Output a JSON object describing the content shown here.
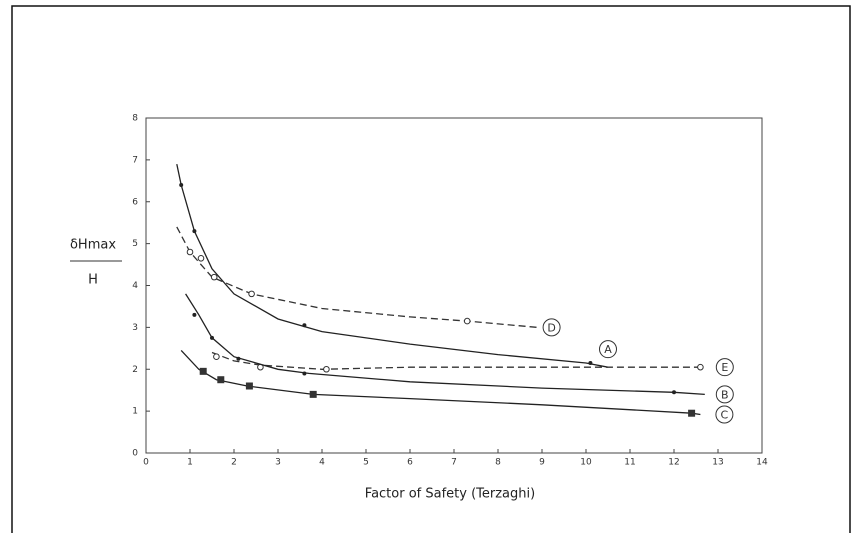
{
  "chart_data": {
    "type": "line",
    "x_label": "Factor of Safety (Terzaghi)",
    "y_label": {
      "numerator": "δHmax",
      "denominator": "H"
    },
    "xlim": [
      0,
      14
    ],
    "xticks": [
      0,
      1,
      2,
      3,
      4,
      5,
      6,
      7,
      8,
      9,
      10,
      11,
      12,
      13,
      14
    ],
    "ylim": [
      0,
      8
    ],
    "yticks": [
      0,
      1,
      2,
      3,
      4,
      5,
      6,
      7,
      8
    ],
    "series": [
      {
        "name": "A",
        "color": "#222",
        "dashed": false,
        "marker": "dot",
        "x": [
          0.7,
          0.8,
          1.1,
          1.5,
          2,
          3,
          4,
          6,
          8,
          10,
          10.5
        ],
        "values": [
          6.9,
          6.4,
          5.3,
          4.4,
          3.8,
          3.2,
          2.9,
          2.6,
          2.35,
          2.15,
          2.05
        ],
        "points": {
          "x": [
            0.8,
            1.1,
            3.6,
            10.1
          ],
          "values": [
            6.4,
            5.3,
            3.05,
            2.15
          ]
        }
      },
      {
        "name": "D",
        "color": "#333",
        "dashed": true,
        "marker": "open-circle",
        "x": [
          0.7,
          1.0,
          1.5,
          2.4,
          4,
          6,
          7.3,
          8.9
        ],
        "values": [
          5.4,
          4.8,
          4.2,
          3.8,
          3.45,
          3.25,
          3.15,
          3.0
        ],
        "points": {
          "x": [
            1.0,
            1.25,
            1.55,
            2.4,
            7.3
          ],
          "values": [
            4.8,
            4.65,
            4.2,
            3.8,
            3.15
          ]
        }
      },
      {
        "name": "E",
        "color": "#333",
        "dashed": true,
        "marker": "open-circle",
        "x": [
          1.5,
          2,
          2.6,
          4,
          6,
          10,
          12.7
        ],
        "values": [
          2.4,
          2.2,
          2.1,
          2.0,
          2.05,
          2.05,
          2.05
        ],
        "points": {
          "x": [
            1.6,
            2.6,
            4.1,
            12.6
          ],
          "values": [
            2.3,
            2.05,
            2.0,
            2.05
          ]
        }
      },
      {
        "name": "B",
        "color": "#222",
        "dashed": false,
        "marker": "dot",
        "x": [
          0.9,
          1.2,
          1.5,
          2,
          3,
          3.7,
          6,
          9,
          12,
          12.7
        ],
        "values": [
          3.8,
          3.3,
          2.75,
          2.3,
          2.0,
          1.9,
          1.7,
          1.55,
          1.45,
          1.4
        ],
        "points": {
          "x": [
            1.1,
            1.5,
            2.1,
            3.6,
            12
          ],
          "values": [
            3.3,
            2.75,
            2.25,
            1.9,
            1.45
          ]
        }
      },
      {
        "name": "C",
        "color": "#222",
        "dashed": false,
        "marker": "square",
        "x": [
          0.8,
          1.2,
          1.6,
          2.3,
          3.8,
          6,
          9,
          12.4,
          12.6
        ],
        "values": [
          2.45,
          2.0,
          1.75,
          1.6,
          1.4,
          1.3,
          1.15,
          0.95,
          0.92
        ],
        "points": {
          "x": [
            1.3,
            1.7,
            2.35,
            3.8,
            12.4
          ],
          "values": [
            1.95,
            1.75,
            1.6,
            1.4,
            0.95
          ]
        }
      }
    ]
  }
}
